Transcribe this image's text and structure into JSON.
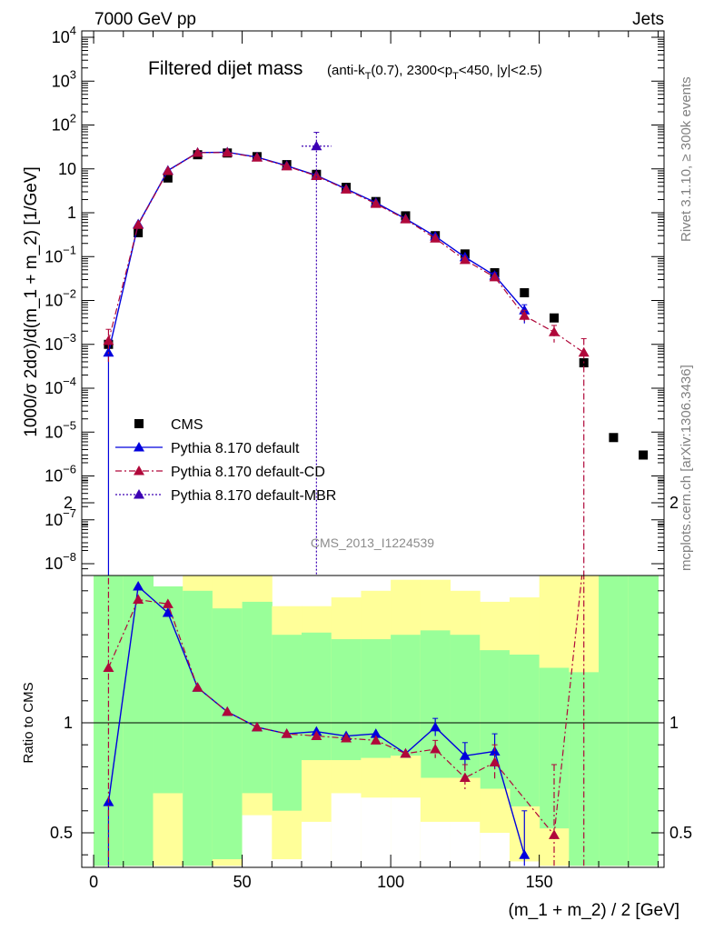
{
  "header": {
    "left": "7000 GeV pp",
    "right": "Jets"
  },
  "side": {
    "rivet": "Rivet 3.1.10, ≥ 300k events",
    "mcplots": "mcplots.cern.ch [arXiv:1306.3436]"
  },
  "chart_data": [
    {
      "type": "scatter",
      "title": "Filtered dijet mass",
      "subtitle_parts": [
        "(anti-k",
        "T",
        "(0.7), 2300<p",
        "T",
        "<450, |y|<2.5)"
      ],
      "ylabel": "1000/σ 2dσ)/d(m_1 + m_2) [1/GeV]",
      "watermark": "CMS_2013_I1224539",
      "yscale": "log",
      "ylim": [
        1e-08,
        10000
      ],
      "xlim": [
        -4,
        192
      ],
      "yticks": [
        {
          "v": 1e-08,
          "label": "10",
          "exp": "−8"
        },
        {
          "v": 1e-07,
          "label": "10",
          "exp": "−7"
        },
        {
          "v": 1e-06,
          "label": "10",
          "exp": "−6"
        },
        {
          "v": 1e-05,
          "label": "10",
          "exp": "−5"
        },
        {
          "v": 0.0001,
          "label": "10",
          "exp": "−4"
        },
        {
          "v": 0.001,
          "label": "10",
          "exp": "−3"
        },
        {
          "v": 0.01,
          "label": "10",
          "exp": "−2"
        },
        {
          "v": 0.1,
          "label": "10",
          "exp": "−1"
        },
        {
          "v": 1,
          "label": "1",
          "exp": ""
        },
        {
          "v": 10,
          "label": "10",
          "exp": ""
        },
        {
          "v": 100,
          "label": "10",
          "exp": "2"
        },
        {
          "v": 1000,
          "label": "10",
          "exp": "3"
        },
        {
          "v": 10000,
          "label": "10",
          "exp": "4"
        }
      ],
      "legend": [
        {
          "name": "CMS",
          "marker": "square",
          "color": "#000000",
          "line": "none"
        },
        {
          "name": "Pythia 8.170 default",
          "marker": "triangle",
          "color": "#0000dd",
          "line": "solid"
        },
        {
          "name": "Pythia 8.170 default-CD",
          "marker": "triangle",
          "color": "#b0083a",
          "line": "dashdot"
        },
        {
          "name": "Pythia 8.170 default-MBR",
          "marker": "triangle",
          "color": "#3c00b4",
          "line": "dotted"
        }
      ],
      "cms": {
        "x": [
          5,
          15,
          25,
          35,
          45,
          55,
          65,
          75,
          85,
          95,
          105,
          115,
          125,
          135,
          145,
          155,
          165,
          175,
          185
        ],
        "y": [
          0.001,
          0.35,
          6.2,
          21,
          23,
          19,
          12.5,
          7.5,
          3.8,
          1.8,
          0.85,
          0.3,
          0.115,
          0.043,
          0.015,
          0.004,
          0.00038,
          7.5e-06,
          3e-06
        ]
      },
      "series": [
        {
          "name": "Pythia 8.170 default",
          "x": [
            5,
            15,
            25,
            35,
            45,
            55,
            65,
            75,
            85,
            95,
            105,
            115,
            125,
            135,
            145
          ],
          "y": [
            0.00065,
            0.55,
            9.2,
            23.5,
            24,
            18.5,
            11.8,
            7.1,
            3.5,
            1.7,
            0.73,
            0.29,
            0.097,
            0.037,
            0.006
          ],
          "err_up": [
            0.0004,
            0,
            0,
            0,
            0,
            0,
            0,
            0,
            0,
            0,
            0,
            0,
            0,
            0.006,
            0.002
          ],
          "err_down": [
            0.00065,
            0,
            0,
            0,
            0,
            0,
            0,
            0,
            0,
            0,
            0,
            0,
            0,
            0.005,
            0.003
          ]
        },
        {
          "name": "Pythia 8.170 default-CD",
          "x": [
            5,
            15,
            25,
            35,
            45,
            55,
            65,
            75,
            85,
            95,
            105,
            115,
            125,
            135,
            145,
            155,
            165
          ],
          "y": [
            0.0012,
            0.53,
            9.0,
            23.3,
            23.6,
            18.2,
            11.5,
            6.9,
            3.4,
            1.6,
            0.71,
            0.26,
            0.084,
            0.034,
            0.0045,
            0.0019,
            0.00065
          ],
          "err_up": [
            0.001,
            0,
            0,
            0,
            0,
            0,
            0,
            0,
            0,
            0,
            0,
            0,
            0,
            0,
            0.0015,
            0.0008,
            0.0007
          ],
          "err_down": [
            0.0008,
            0,
            0,
            0,
            0,
            0,
            0,
            0,
            0,
            0,
            0,
            0,
            0,
            0,
            0.0015,
            0.0008,
            0.00065
          ]
        },
        {
          "name": "Pythia 8.170 default-MBR",
          "x": [
            75
          ],
          "y": [
            33
          ],
          "err_up": [
            35
          ],
          "err_down": [
            33
          ],
          "xerr": [
            5
          ]
        }
      ]
    },
    {
      "type": "scatter",
      "ylabel": "Ratio to CMS",
      "xlabel": "(m_1 + m_2) / 2 [GeV]",
      "xlim": [
        -4,
        192
      ],
      "ylim": [
        0.35,
        2.3
      ],
      "xticks": [
        0,
        50,
        100,
        150
      ],
      "yticks": [
        0.5,
        1,
        2
      ],
      "reference_line": 1,
      "bands": {
        "edges": [
          0,
          10,
          20,
          30,
          40,
          50,
          60,
          70,
          80,
          90,
          100,
          110,
          120,
          130,
          140,
          150,
          160,
          170,
          180,
          190
        ],
        "yellow_lo": [
          0.35,
          0.35,
          0.35,
          0.35,
          0.35,
          0.35,
          0.35,
          0.35,
          0.35,
          0.35,
          0.35,
          0.35,
          0.35,
          0.35,
          0.35,
          0.35,
          0.35,
          0.35,
          0.35
        ],
        "yellow_hi": [
          2.3,
          2.3,
          1.62,
          1.88,
          1.9,
          1.75,
          1.53,
          1.53,
          1.57,
          1.6,
          1.65,
          1.65,
          1.6,
          1.55,
          1.57,
          2.0,
          2.3,
          2.3,
          2.3
        ],
        "green_lo": [
          0.35,
          0.35,
          0.68,
          0.35,
          0.38,
          0.68,
          0.6,
          0.83,
          0.83,
          0.84,
          0.85,
          0.75,
          0.75,
          0.7,
          0.62,
          0.52,
          0.35,
          0.35,
          0.35
        ],
        "green_hi": [
          2.3,
          2.3,
          1.62,
          1.6,
          1.52,
          1.55,
          1.4,
          1.41,
          1.38,
          1.38,
          1.4,
          1.42,
          1.4,
          1.33,
          1.31,
          1.25,
          1.23,
          2.3,
          2.3
        ],
        "real_lo": [
          null,
          null,
          0.35,
          null,
          0.35,
          0.35,
          0.35,
          0.6,
          0.72,
          0.74,
          0.75,
          0.63,
          0.62,
          0.55,
          0.42,
          0.35,
          0.35,
          null,
          null
        ]
      },
      "series": [
        {
          "name": "Pythia 8.170 default",
          "x": [
            5,
            15,
            25,
            35,
            45,
            55,
            65,
            75,
            85,
            95,
            105,
            115,
            125,
            135,
            145
          ],
          "y": [
            0.64,
            1.62,
            1.5,
            1.16,
            1.05,
            0.98,
            0.95,
            0.96,
            0.94,
            0.95,
            0.86,
            0.98,
            0.85,
            0.87,
            0.4
          ],
          "err_up": [
            0,
            0,
            0,
            0,
            0,
            0,
            0,
            0,
            0,
            0,
            0,
            0.04,
            0.06,
            0.08,
            0.2
          ],
          "err_down": [
            0.3,
            0,
            0,
            0,
            0,
            0,
            0,
            0,
            0,
            0,
            0,
            0.04,
            0.06,
            0.08,
            0.05
          ]
        },
        {
          "name": "Pythia 8.170 default-CD",
          "x": [
            5,
            15,
            25,
            35,
            45,
            55,
            65,
            75,
            85,
            95,
            105,
            115,
            125,
            135,
            155,
            165
          ],
          "y": [
            1.25,
            1.56,
            1.54,
            1.16,
            1.05,
            0.98,
            0.95,
            0.94,
            0.93,
            0.92,
            0.86,
            0.88,
            0.75,
            0.82,
            0.49,
            1.75
          ],
          "err_up": [
            0.78,
            0,
            0,
            0,
            0,
            0,
            0,
            0,
            0,
            0,
            0,
            0.04,
            0.06,
            0.08,
            0.32,
            0.55
          ],
          "err_down": [
            0.9,
            0,
            0,
            0,
            0,
            0,
            0,
            0,
            0,
            0,
            0,
            0.04,
            0.06,
            0.08,
            0.14,
            1.4
          ]
        }
      ]
    }
  ]
}
